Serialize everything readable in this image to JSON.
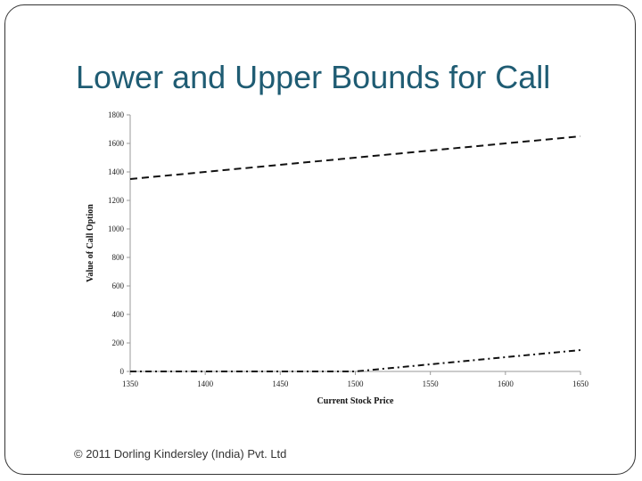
{
  "slide": {
    "title": "Lower and Upper Bounds for Call",
    "footer": "© 2011 Dorling Kindersley (India) Pvt. Ltd"
  },
  "chart_data": {
    "type": "line",
    "title": "",
    "xlabel": "Current Stock Price",
    "ylabel": "Value of Call Option",
    "xlim": [
      1350,
      1650
    ],
    "ylim": [
      0,
      1800
    ],
    "xticks": [
      1350,
      1400,
      1450,
      1500,
      1550,
      1600,
      1650
    ],
    "yticks": [
      0,
      200,
      400,
      600,
      800,
      1000,
      1200,
      1400,
      1600,
      1800
    ],
    "grid": false,
    "legend": "none",
    "series": [
      {
        "style": "dashed",
        "color": "#111111",
        "x": [
          1350,
          1400,
          1450,
          1500,
          1550,
          1600,
          1650
        ],
        "y": [
          1350,
          1400,
          1450,
          1500,
          1550,
          1600,
          1650
        ]
      },
      {
        "style": "dash-dot",
        "color": "#111111",
        "x": [
          1350,
          1400,
          1450,
          1500,
          1550,
          1600,
          1650
        ],
        "y": [
          0,
          0,
          0,
          0,
          50,
          100,
          150
        ]
      }
    ]
  }
}
